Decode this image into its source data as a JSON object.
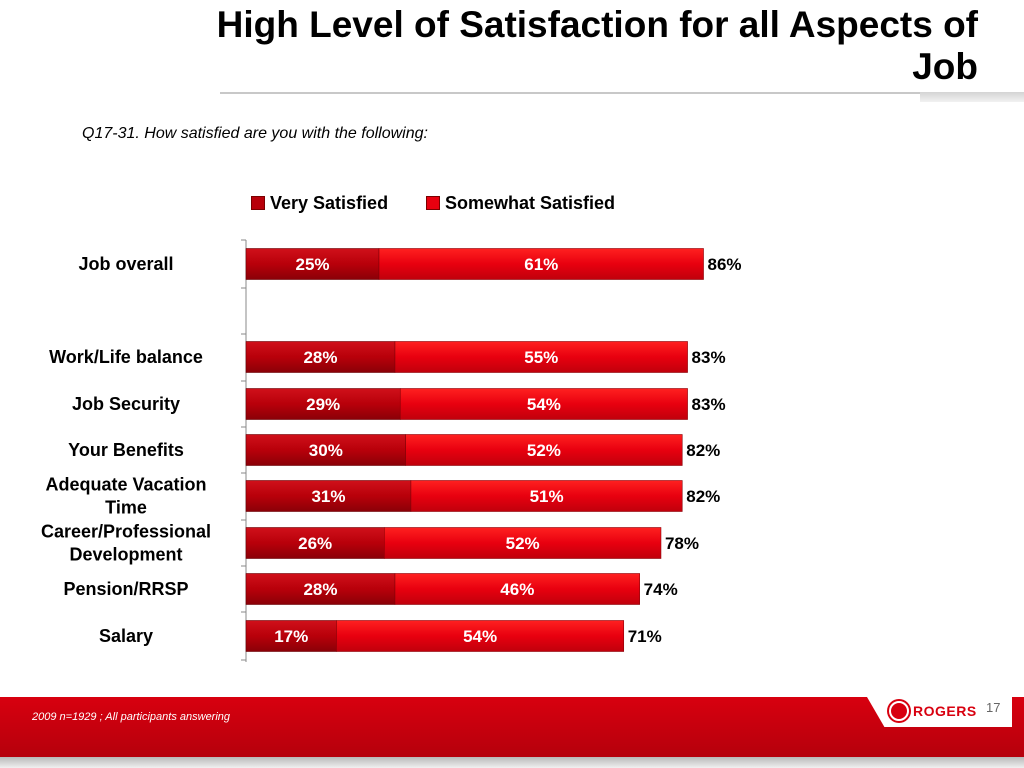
{
  "slide": {
    "title": "High Level of Satisfaction for all Aspects of Job",
    "question": "Q17-31. How satisfied are you with the following:",
    "footnote": "2009 n=1929 ;  All participants answering",
    "page_number": "17",
    "logo_text": "ROGERS"
  },
  "colors": {
    "very_satisfied": "#b8000a",
    "somewhat_satisfied": "#e8000f",
    "footer": "#d0000e"
  },
  "chart_data": {
    "type": "bar",
    "orientation": "horizontal",
    "stacked": true,
    "categories": [
      "Job overall",
      "Work/Life balance",
      "Job Security",
      "Your Benefits",
      "Adequate Vacation Time",
      "Career/Professional Development",
      "Pension/RRSP",
      "Salary"
    ],
    "category_lines": [
      [
        "Job overall"
      ],
      [
        "Work/Life balance"
      ],
      [
        "Job Security"
      ],
      [
        "Your Benefits"
      ],
      [
        "Adequate Vacation",
        "Time"
      ],
      [
        "Career/Professional",
        "Development"
      ],
      [
        "Pension/RRSP"
      ],
      [
        "Salary"
      ]
    ],
    "series": [
      {
        "name": "Very Satisfied",
        "values": [
          25,
          28,
          29,
          30,
          31,
          26,
          28,
          17
        ]
      },
      {
        "name": "Somewhat Satisfied",
        "values": [
          61,
          55,
          54,
          52,
          51,
          52,
          46,
          54
        ]
      }
    ],
    "totals": [
      86,
      83,
      83,
      82,
      82,
      78,
      74,
      71
    ],
    "legend_position": "top",
    "grid": false
  }
}
